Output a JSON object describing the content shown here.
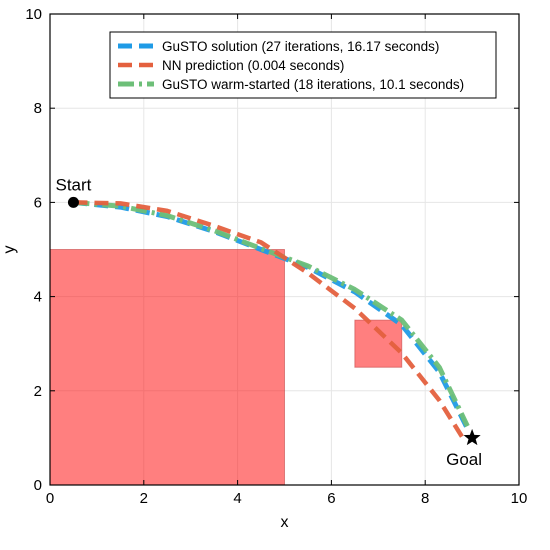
{
  "chart_data": {
    "type": "line",
    "title": "",
    "xlabel": "x",
    "ylabel": "y",
    "xlim": [
      0,
      10
    ],
    "ylim": [
      0,
      10
    ],
    "xticks": [
      0,
      2,
      4,
      6,
      8,
      10
    ],
    "yticks": [
      0,
      2,
      4,
      6,
      8,
      10
    ],
    "grid": true,
    "legend_position": "top-right",
    "obstacles": [
      {
        "x0": 0,
        "y0": 0,
        "x1": 5,
        "y1": 5,
        "color": "#ff0000",
        "opacity": 0.5
      },
      {
        "x0": 6.5,
        "y0": 2.5,
        "x1": 7.5,
        "y1": 3.5,
        "color": "#ff0000",
        "opacity": 0.5
      }
    ],
    "series": [
      {
        "name": "GuSTO solution (27 iterations, 16.17 seconds)",
        "color": "#1f9be6",
        "style": "dashed",
        "x": [
          0.5,
          1.5,
          2.5,
          3.5,
          4.5,
          5.5,
          6.5,
          7.5,
          8.3,
          8.9
        ],
        "y": [
          6.0,
          5.9,
          5.7,
          5.38,
          5.0,
          4.62,
          4.1,
          3.4,
          2.4,
          1.2
        ]
      },
      {
        "name": "NN prediction (0.004 seconds)",
        "color": "#e4603e",
        "style": "dashed",
        "x": [
          0.5,
          1.5,
          2.5,
          3.5,
          4.5,
          5.5,
          6.5,
          7.5,
          8.3,
          8.8
        ],
        "y": [
          6.0,
          5.98,
          5.82,
          5.5,
          5.15,
          4.5,
          3.75,
          2.8,
          1.8,
          1.0
        ]
      },
      {
        "name": "GuSTO warm-started (18 iterations, 10.1 seconds)",
        "color": "#6dbf78",
        "style": "dashdot",
        "x": [
          0.5,
          1.5,
          2.5,
          3.5,
          4.5,
          5.5,
          6.5,
          7.5,
          8.3,
          8.9
        ],
        "y": [
          6.0,
          5.92,
          5.72,
          5.4,
          5.02,
          4.65,
          4.15,
          3.5,
          2.5,
          1.25
        ]
      }
    ],
    "markers": [
      {
        "label": "Start",
        "x": 0.5,
        "y": 6.0,
        "symbol": "circle"
      },
      {
        "label": "Goal",
        "x": 9.0,
        "y": 1.0,
        "symbol": "star"
      }
    ]
  }
}
